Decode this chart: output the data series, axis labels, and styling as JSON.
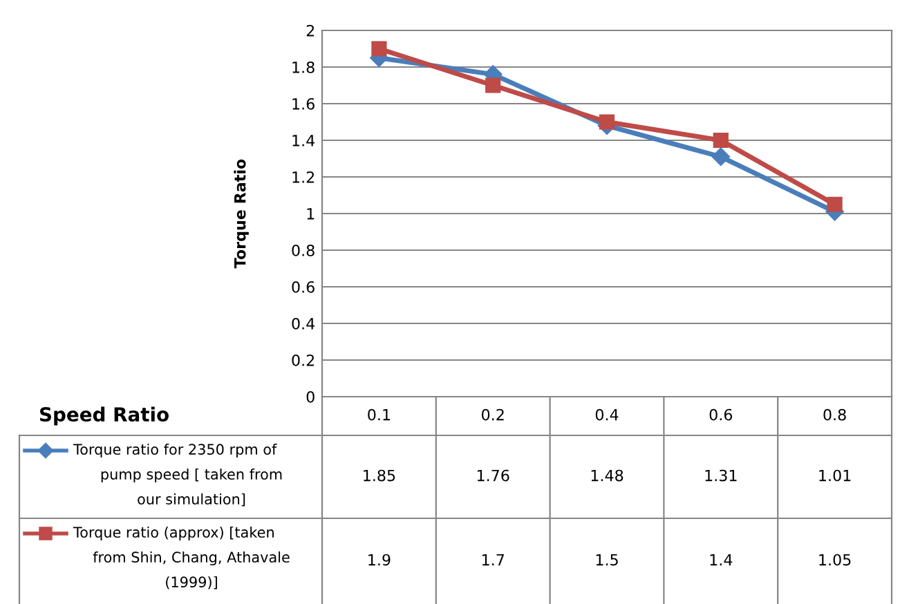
{
  "chart_data": {
    "type": "line",
    "annotations": [
      "Speed Ratio"
    ],
    "ylabel": "Torque Ratio",
    "categories": [
      "0.1",
      "0.2",
      "0.4",
      "0.6",
      "0.8"
    ],
    "series": [
      {
        "name": "Torque ratio for 2350 rpm of pump speed [ taken from our simulation]",
        "color": "#4a7ebb",
        "marker": "diamond",
        "values": [
          1.85,
          1.76,
          1.48,
          1.31,
          1.01
        ]
      },
      {
        "name": "Torque ratio (approx) [taken from Shin, Chang, Athavale (1999)]",
        "color": "#be4b48",
        "marker": "square",
        "values": [
          1.9,
          1.7,
          1.5,
          1.4,
          1.05
        ]
      }
    ],
    "ylim": [
      0,
      2
    ],
    "yticks": [
      0,
      0.2,
      0.4,
      0.6,
      0.8,
      1,
      1.2,
      1.4,
      1.6,
      1.8,
      2
    ],
    "grid": "y",
    "legend": "bottom",
    "data_labels": true,
    "line_style": "solid"
  }
}
